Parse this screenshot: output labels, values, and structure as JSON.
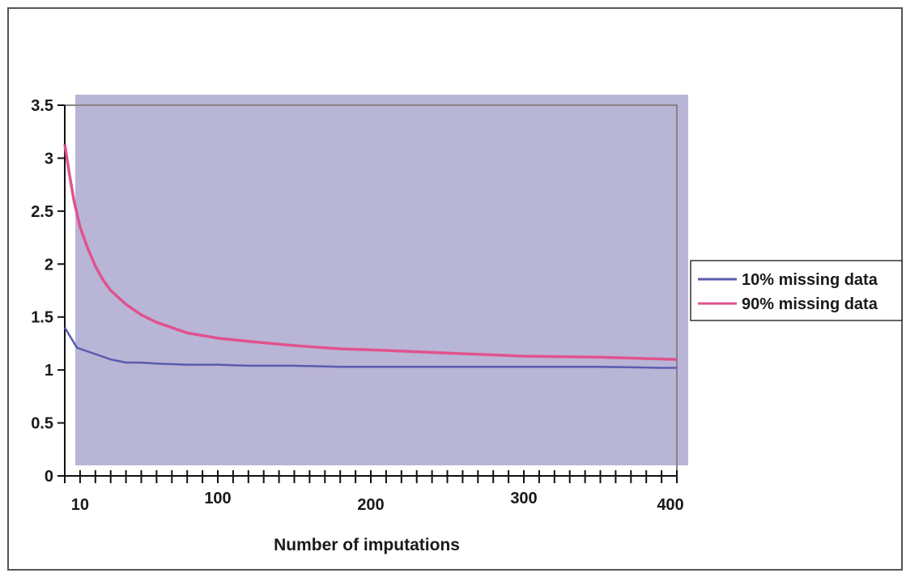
{
  "chart_data": {
    "type": "line",
    "title": "",
    "xlabel": "Number of imputations",
    "ylabel": "",
    "xlim": [
      0,
      400
    ],
    "ylim": [
      0,
      3.5
    ],
    "y_ticks": [
      0,
      0.5,
      1,
      1.5,
      2,
      2.5,
      3,
      3.5
    ],
    "x_tick_labels": [
      {
        "value": 10,
        "label": "10"
      },
      {
        "value": 100,
        "label": "100"
      },
      {
        "value": 200,
        "label": "200"
      },
      {
        "value": 300,
        "label": "300"
      },
      {
        "value": 400,
        "label": "400"
      }
    ],
    "minor_tick_count": 40,
    "grid": false,
    "plot_background": "#b9b5d6",
    "legend": "right",
    "series": [
      {
        "name": "10% missing data",
        "color": "#5b5bb0",
        "x": [
          0,
          8,
          20,
          30,
          40,
          50,
          60,
          80,
          100,
          120,
          150,
          180,
          200,
          250,
          300,
          350,
          390,
          400
        ],
        "y": [
          1.4,
          1.21,
          1.15,
          1.1,
          1.07,
          1.07,
          1.06,
          1.05,
          1.05,
          1.04,
          1.04,
          1.03,
          1.03,
          1.03,
          1.03,
          1.03,
          1.02,
          1.02
        ]
      },
      {
        "name": "90% missing data",
        "color": "#e0528e",
        "x": [
          0,
          3,
          6,
          10,
          15,
          20,
          25,
          30,
          40,
          50,
          60,
          70,
          80,
          100,
          120,
          150,
          180,
          200,
          250,
          300,
          350,
          400
        ],
        "y": [
          3.13,
          2.85,
          2.6,
          2.35,
          2.15,
          1.98,
          1.85,
          1.75,
          1.62,
          1.52,
          1.45,
          1.4,
          1.35,
          1.3,
          1.27,
          1.23,
          1.2,
          1.19,
          1.16,
          1.13,
          1.12,
          1.1
        ]
      }
    ]
  }
}
